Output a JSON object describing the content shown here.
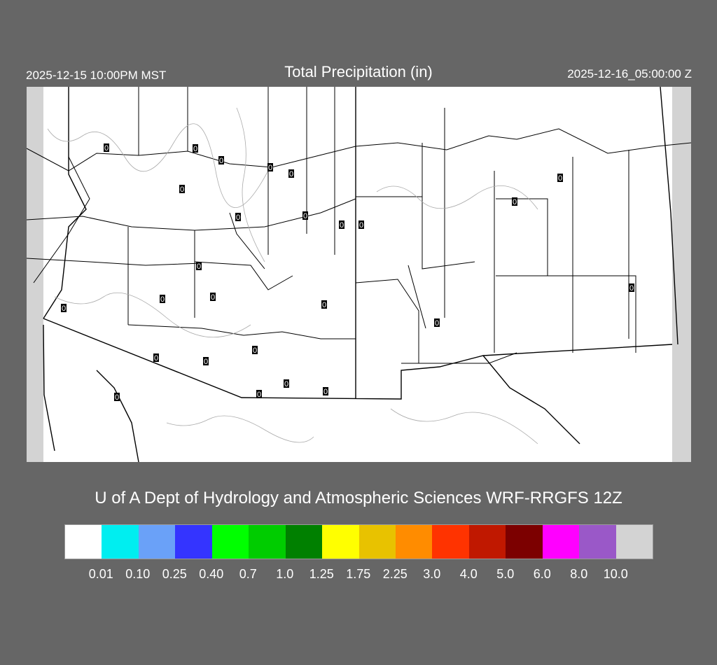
{
  "header": {
    "valid_local": "2025-12-15 10:00PM MST",
    "title": "Total Precipitation (in)",
    "valid_utc": "2025-12-16_05:00:00 Z"
  },
  "credit": "U of A Dept of Hydrology and Atmospheric Sciences WRF-RRGFS 12Z",
  "colorbar": {
    "colors": [
      "#ffffff",
      "#00eef0",
      "#6aa1f8",
      "#3434ff",
      "#00ff00",
      "#00cc00",
      "#008000",
      "#ffff00",
      "#e8c200",
      "#ff8c00",
      "#ff3300",
      "#c01800",
      "#7c0000",
      "#ff00ff",
      "#9a58c8",
      "#d3d3d3"
    ],
    "labels": [
      "0.01",
      "0.10",
      "0.25",
      "0.40",
      "0.7",
      "1.0",
      "1.25",
      "1.75",
      "2.25",
      "3.0",
      "4.0",
      "5.0",
      "6.0",
      "8.0",
      "10.0"
    ]
  },
  "stations": {
    "values": [
      "0",
      "0",
      "0",
      "0",
      "0",
      "0",
      "0",
      "0",
      "0",
      "0",
      "0",
      "0",
      "0",
      "0",
      "0",
      "0",
      "0",
      "0",
      "0",
      "0",
      "0",
      "0",
      "0",
      "0",
      "0",
      "0"
    ]
  }
}
